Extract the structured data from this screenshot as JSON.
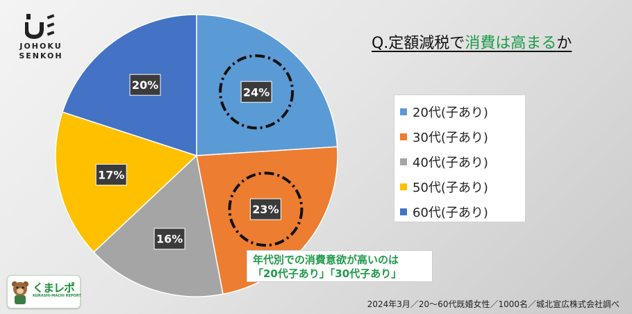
{
  "logo": {
    "line1": "JOHOKU",
    "line2": "SENKOH"
  },
  "title": {
    "prefix": "Q.定額減税で",
    "highlight": "消費は高まる",
    "suffix": "か"
  },
  "chart_data": {
    "type": "pie",
    "categories": [
      "20代(子あり)",
      "30代(子あり)",
      "40代(子あり)",
      "50代(子あり)",
      "60代(子あり)"
    ],
    "values": [
      24,
      23,
      16,
      17,
      20
    ],
    "labels": [
      "24%",
      "23%",
      "16%",
      "17%",
      "20%"
    ],
    "colors": [
      "#5b9bd5",
      "#ed7d31",
      "#a5a5a5",
      "#ffc000",
      "#4472c4"
    ],
    "highlighted": [
      "20代(子あり)",
      "30代(子あり)"
    ],
    "legend_position": "right"
  },
  "note": {
    "line1": "年代別での消費意欲が高いのは",
    "line2": "「20代子あり」「30代子あり」"
  },
  "footer": "2024年3月／20～60代既婚女性／1000名／城北宣広株式会社調べ",
  "badge": {
    "text": "くまレポ",
    "sub": "KURASHI-MACHI REPORT"
  }
}
